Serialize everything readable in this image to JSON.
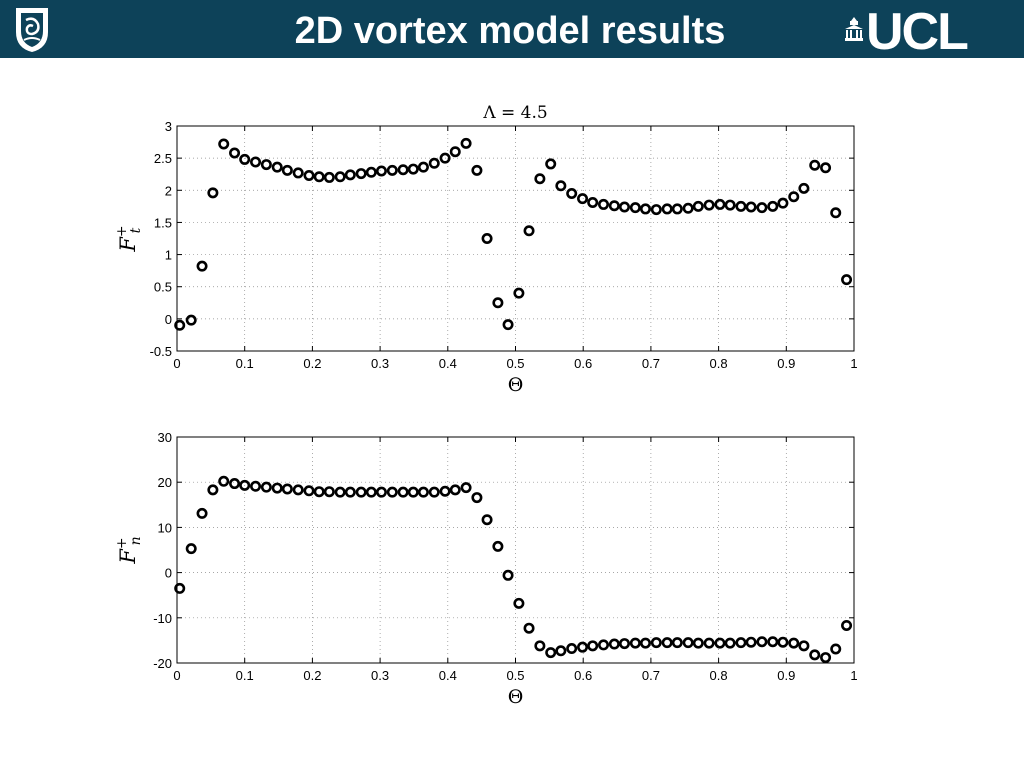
{
  "header": {
    "title": "2D vortex model results",
    "logo_text": "UCL",
    "background_color": "#0d4259"
  },
  "chart_data": [
    {
      "type": "scatter",
      "title": "Λ = 4.5",
      "xlabel": "Θ",
      "ylabel_base": "F",
      "ylabel_sub": "t",
      "ylabel_sup": "+",
      "xlim": [
        0,
        1
      ],
      "ylim": [
        -0.5,
        3
      ],
      "xticks": [
        0,
        0.1,
        0.2,
        0.3,
        0.4,
        0.5,
        0.6,
        0.7,
        0.8,
        0.9,
        1
      ],
      "yticks": [
        -0.5,
        0,
        0.5,
        1,
        1.5,
        2,
        2.5,
        3
      ],
      "grid": true,
      "series": [
        {
          "marker": "circle-open",
          "x": [
            0.004,
            0.021,
            0.037,
            0.053,
            0.069,
            0.085,
            0.1,
            0.116,
            0.132,
            0.148,
            0.163,
            0.179,
            0.195,
            0.21,
            0.225,
            0.241,
            0.256,
            0.272,
            0.287,
            0.302,
            0.318,
            0.334,
            0.349,
            0.364,
            0.38,
            0.396,
            0.411,
            0.427,
            0.443,
            0.458,
            0.474,
            0.489,
            0.505,
            0.52,
            0.536,
            0.552,
            0.567,
            0.583,
            0.599,
            0.614,
            0.63,
            0.646,
            0.661,
            0.677,
            0.692,
            0.708,
            0.724,
            0.739,
            0.755,
            0.77,
            0.786,
            0.802,
            0.817,
            0.833,
            0.848,
            0.864,
            0.88,
            0.895,
            0.911,
            0.926,
            0.942,
            0.958,
            0.973,
            0.989
          ],
          "y": [
            -0.1,
            -0.02,
            0.82,
            1.96,
            2.72,
            2.58,
            2.48,
            2.44,
            2.4,
            2.36,
            2.31,
            2.27,
            2.23,
            2.21,
            2.2,
            2.21,
            2.24,
            2.26,
            2.28,
            2.3,
            2.31,
            2.32,
            2.33,
            2.36,
            2.42,
            2.5,
            2.6,
            2.73,
            2.31,
            1.25,
            0.25,
            -0.09,
            0.4,
            1.37,
            2.18,
            2.41,
            2.07,
            1.95,
            1.87,
            1.81,
            1.78,
            1.76,
            1.74,
            1.73,
            1.71,
            1.7,
            1.71,
            1.71,
            1.72,
            1.75,
            1.77,
            1.78,
            1.77,
            1.75,
            1.74,
            1.73,
            1.75,
            1.8,
            1.9,
            2.03,
            2.39,
            2.35,
            1.65,
            0.61
          ]
        }
      ]
    },
    {
      "type": "scatter",
      "title": "",
      "xlabel": "Θ",
      "ylabel_base": "F",
      "ylabel_sub": "n",
      "ylabel_sup": "+",
      "xlim": [
        0,
        1
      ],
      "ylim": [
        -20,
        30
      ],
      "xticks": [
        0,
        0.1,
        0.2,
        0.3,
        0.4,
        0.5,
        0.6,
        0.7,
        0.8,
        0.9,
        1
      ],
      "yticks": [
        -20,
        -10,
        0,
        10,
        20,
        30
      ],
      "grid": true,
      "series": [
        {
          "marker": "circle-open",
          "x": [
            0.004,
            0.021,
            0.037,
            0.053,
            0.069,
            0.085,
            0.1,
            0.116,
            0.132,
            0.148,
            0.163,
            0.179,
            0.195,
            0.21,
            0.225,
            0.241,
            0.256,
            0.272,
            0.287,
            0.302,
            0.318,
            0.334,
            0.349,
            0.364,
            0.38,
            0.396,
            0.411,
            0.427,
            0.443,
            0.458,
            0.474,
            0.489,
            0.505,
            0.52,
            0.536,
            0.552,
            0.567,
            0.583,
            0.599,
            0.614,
            0.63,
            0.646,
            0.661,
            0.677,
            0.692,
            0.708,
            0.724,
            0.739,
            0.755,
            0.77,
            0.786,
            0.802,
            0.817,
            0.833,
            0.848,
            0.864,
            0.88,
            0.895,
            0.911,
            0.926,
            0.942,
            0.958,
            0.973,
            0.989
          ],
          "y": [
            -3.5,
            5.3,
            13.1,
            18.3,
            20.2,
            19.7,
            19.3,
            19.1,
            18.9,
            18.7,
            18.5,
            18.3,
            18.1,
            17.9,
            17.9,
            17.8,
            17.8,
            17.8,
            17.8,
            17.8,
            17.8,
            17.8,
            17.8,
            17.8,
            17.8,
            18,
            18.3,
            18.8,
            16.6,
            11.7,
            5.8,
            -0.6,
            -6.8,
            -12.3,
            -16.2,
            -17.7,
            -17.3,
            -16.8,
            -16.5,
            -16.2,
            -16,
            -15.8,
            -15.7,
            -15.6,
            -15.6,
            -15.5,
            -15.5,
            -15.5,
            -15.5,
            -15.6,
            -15.6,
            -15.6,
            -15.6,
            -15.5,
            -15.4,
            -15.3,
            -15.3,
            -15.4,
            -15.6,
            -16.2,
            -18.2,
            -18.8,
            -16.9,
            -11.7
          ]
        }
      ]
    }
  ]
}
